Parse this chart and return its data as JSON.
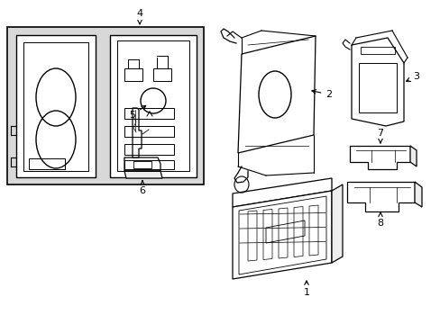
{
  "background_color": "#ffffff",
  "fig_width": 4.89,
  "fig_height": 3.6,
  "dpi": 100,
  "gray_fill": "#d8d8d8",
  "white_fill": "#ffffff",
  "line_color": "#000000"
}
